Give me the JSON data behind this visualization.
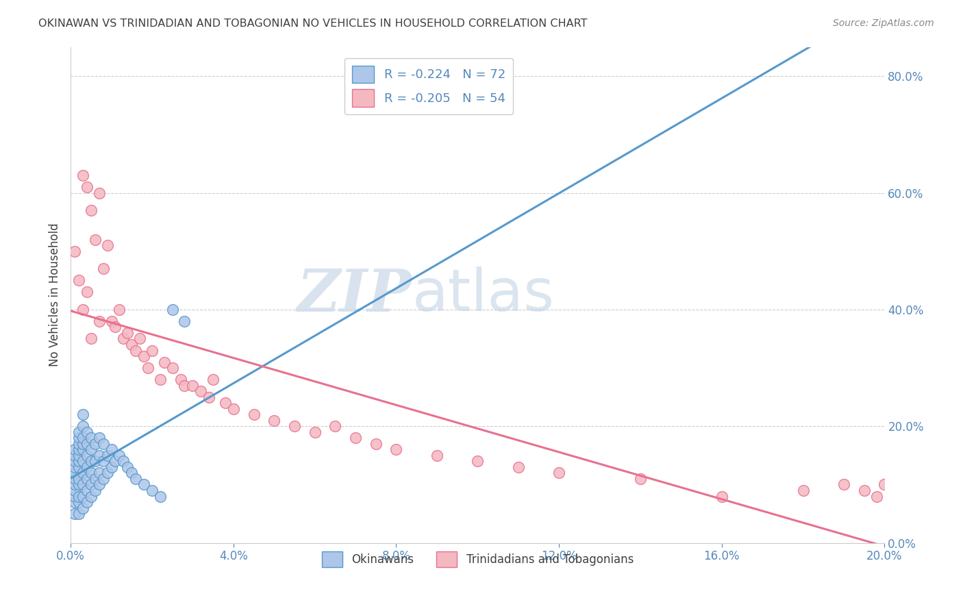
{
  "title": "OKINAWAN VS TRINIDADIAN AND TOBAGONIAN NO VEHICLES IN HOUSEHOLD CORRELATION CHART",
  "source": "Source: ZipAtlas.com",
  "ylabel": "No Vehicles in Household",
  "xlim": [
    0.0,
    0.2
  ],
  "ylim": [
    0.0,
    0.85
  ],
  "xticks": [
    0.0,
    0.04,
    0.08,
    0.12,
    0.16,
    0.2
  ],
  "yticks": [
    0.0,
    0.2,
    0.4,
    0.6,
    0.8
  ],
  "group1_color": "#aec6e8",
  "group2_color": "#f4b8c1",
  "group1_edge": "#5599cc",
  "group2_edge": "#e87090",
  "line1_color": "#5599cc",
  "line2_color": "#e87090",
  "legend_r1": "R = -0.224",
  "legend_n1": "N = 72",
  "legend_r2": "R = -0.205",
  "legend_n2": "N = 54",
  "watermark_zip": "ZIP",
  "watermark_atlas": "atlas",
  "background_color": "#ffffff",
  "grid_color": "#cccccc",
  "title_color": "#404040",
  "axis_color": "#5588bb",
  "okinawan_x": [
    0.001,
    0.001,
    0.001,
    0.001,
    0.001,
    0.001,
    0.001,
    0.001,
    0.001,
    0.001,
    0.001,
    0.002,
    0.002,
    0.002,
    0.002,
    0.002,
    0.002,
    0.002,
    0.002,
    0.002,
    0.002,
    0.002,
    0.002,
    0.003,
    0.003,
    0.003,
    0.003,
    0.003,
    0.003,
    0.003,
    0.003,
    0.003,
    0.003,
    0.004,
    0.004,
    0.004,
    0.004,
    0.004,
    0.004,
    0.004,
    0.005,
    0.005,
    0.005,
    0.005,
    0.005,
    0.005,
    0.006,
    0.006,
    0.006,
    0.006,
    0.007,
    0.007,
    0.007,
    0.007,
    0.008,
    0.008,
    0.008,
    0.009,
    0.009,
    0.01,
    0.01,
    0.011,
    0.012,
    0.013,
    0.014,
    0.015,
    0.016,
    0.018,
    0.02,
    0.022,
    0.025,
    0.028
  ],
  "okinawan_y": [
    0.05,
    0.07,
    0.08,
    0.09,
    0.1,
    0.11,
    0.12,
    0.13,
    0.14,
    0.15,
    0.16,
    0.05,
    0.07,
    0.08,
    0.1,
    0.11,
    0.13,
    0.14,
    0.15,
    0.16,
    0.17,
    0.18,
    0.19,
    0.06,
    0.08,
    0.1,
    0.12,
    0.14,
    0.16,
    0.17,
    0.18,
    0.2,
    0.22,
    0.07,
    0.09,
    0.11,
    0.13,
    0.15,
    0.17,
    0.19,
    0.08,
    0.1,
    0.12,
    0.14,
    0.16,
    0.18,
    0.09,
    0.11,
    0.14,
    0.17,
    0.1,
    0.12,
    0.15,
    0.18,
    0.11,
    0.14,
    0.17,
    0.12,
    0.15,
    0.13,
    0.16,
    0.14,
    0.15,
    0.14,
    0.13,
    0.12,
    0.11,
    0.1,
    0.09,
    0.08,
    0.4,
    0.38
  ],
  "trinidadian_x": [
    0.001,
    0.002,
    0.003,
    0.003,
    0.004,
    0.004,
    0.005,
    0.005,
    0.006,
    0.007,
    0.007,
    0.008,
    0.009,
    0.01,
    0.011,
    0.012,
    0.013,
    0.014,
    0.015,
    0.016,
    0.017,
    0.018,
    0.019,
    0.02,
    0.022,
    0.023,
    0.025,
    0.027,
    0.028,
    0.03,
    0.032,
    0.034,
    0.035,
    0.038,
    0.04,
    0.045,
    0.05,
    0.055,
    0.06,
    0.065,
    0.07,
    0.075,
    0.08,
    0.09,
    0.1,
    0.11,
    0.12,
    0.14,
    0.16,
    0.18,
    0.19,
    0.195,
    0.198,
    0.2
  ],
  "trinidadian_y": [
    0.5,
    0.45,
    0.63,
    0.4,
    0.61,
    0.43,
    0.57,
    0.35,
    0.52,
    0.6,
    0.38,
    0.47,
    0.51,
    0.38,
    0.37,
    0.4,
    0.35,
    0.36,
    0.34,
    0.33,
    0.35,
    0.32,
    0.3,
    0.33,
    0.28,
    0.31,
    0.3,
    0.28,
    0.27,
    0.27,
    0.26,
    0.25,
    0.28,
    0.24,
    0.23,
    0.22,
    0.21,
    0.2,
    0.19,
    0.2,
    0.18,
    0.17,
    0.16,
    0.15,
    0.14,
    0.13,
    0.12,
    0.11,
    0.08,
    0.09,
    0.1,
    0.09,
    0.08,
    0.1
  ]
}
